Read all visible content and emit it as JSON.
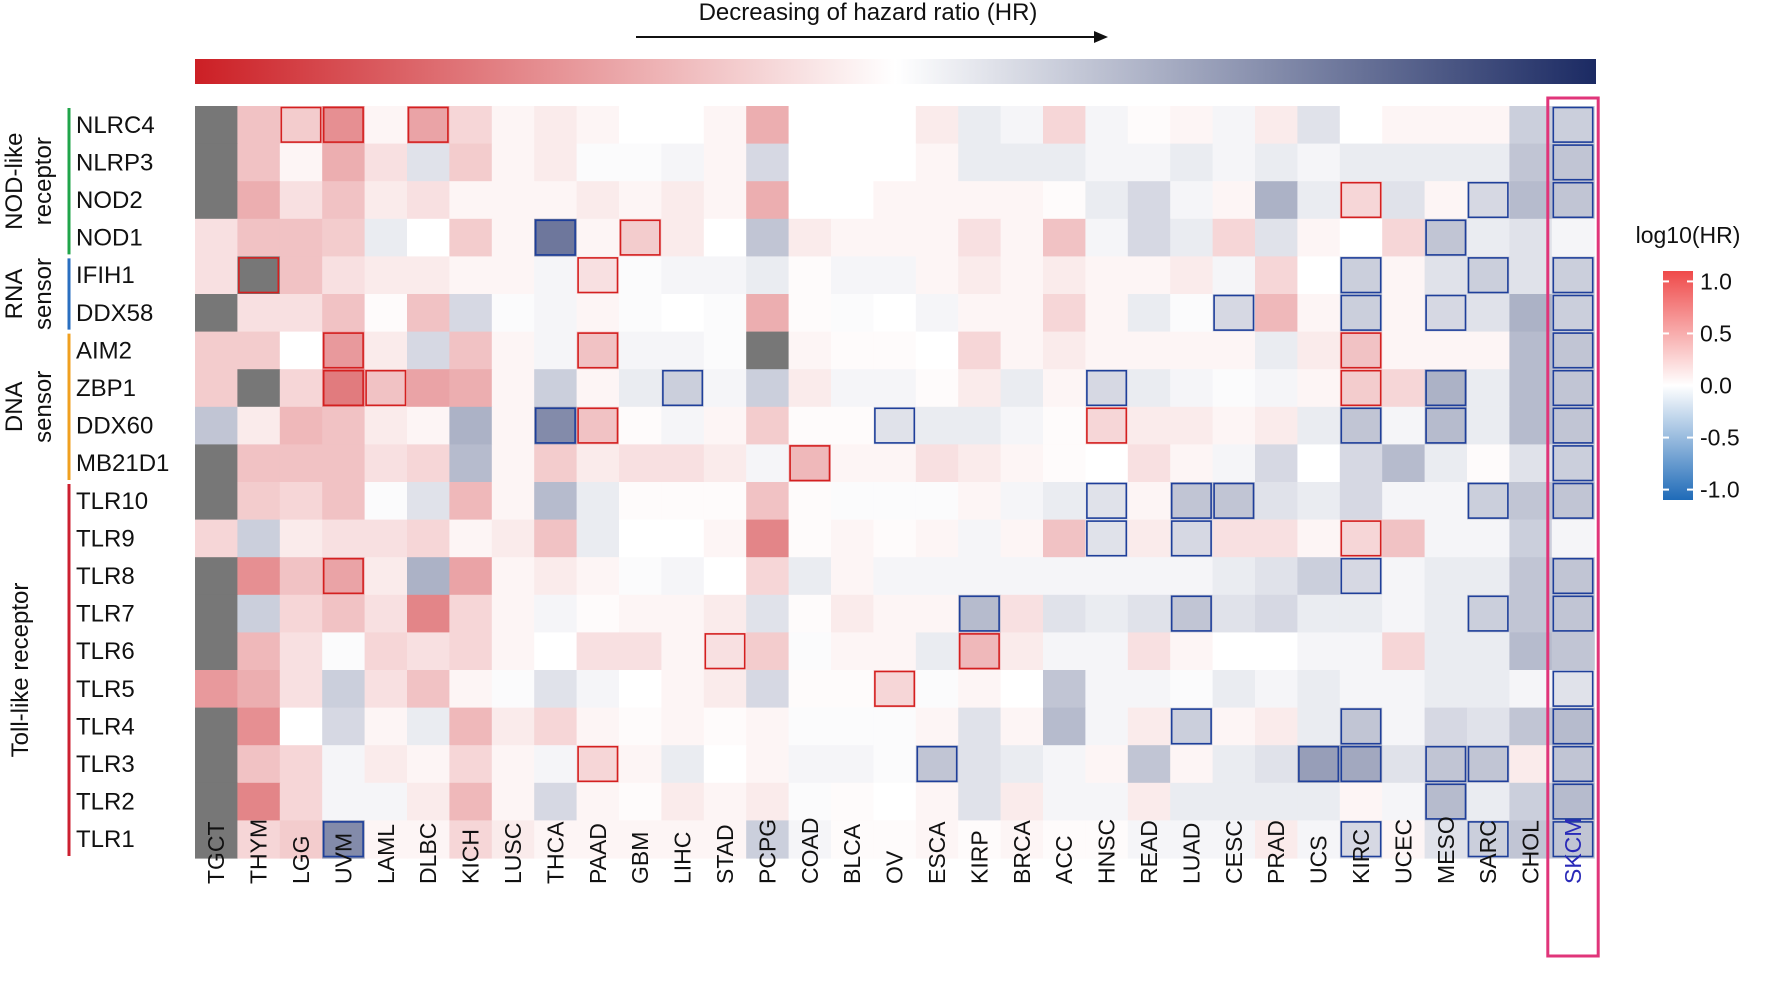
{
  "chart_data": {
    "type": "heatmap",
    "title": "Decreasing of hazard ratio (HR)",
    "legend_title": "log10(HR)",
    "legend_ticks": [
      "1.0",
      "0.5",
      "0.0",
      "-0.5",
      "-1.0"
    ],
    "legend_tick_values": [
      1.0,
      0.5,
      0.0,
      -0.5,
      -1.0
    ],
    "value_range": [
      -1.1,
      1.1
    ],
    "colors": {
      "high": "#cc1f25",
      "mid": "#ffffff",
      "low": "#1b2a63",
      "legend_high": "#ef4a4a",
      "legend_low": "#1f6bb8",
      "na": "#777777",
      "sig_pos": "#d42020",
      "sig_neg": "#1f3f9a",
      "highlight": "#e0357a",
      "highlight_text": "#2a2ab8",
      "group_nod": "#20a54a",
      "group_rna": "#2a6fc0",
      "group_dna": "#f0a020",
      "group_tlr": "#cc2030"
    },
    "columns": [
      "TGCT",
      "THYM",
      "LGG",
      "UVM",
      "LAML",
      "DLBC",
      "KICH",
      "LUSC",
      "THCA",
      "PAAD",
      "GBM",
      "LIHC",
      "STAD",
      "PCPG",
      "COAD",
      "BLCA",
      "OV",
      "ESCA",
      "KIRP",
      "BRCA",
      "ACC",
      "HNSC",
      "READ",
      "LUAD",
      "CESC",
      "PRAD",
      "UCS",
      "KIRC",
      "UCEC",
      "MESO",
      "SARC",
      "CHOL",
      "SKCM"
    ],
    "highlight_column": "SKCM",
    "rows": [
      "NLRC4",
      "NLRP3",
      "NOD2",
      "NOD1",
      "IFIH1",
      "DDX58",
      "AIM2",
      "ZBP1",
      "DDX60",
      "MB21D1",
      "TLR10",
      "TLR9",
      "TLR8",
      "TLR7",
      "TLR6",
      "TLR5",
      "TLR4",
      "TLR3",
      "TLR2",
      "TLR1"
    ],
    "groups": [
      {
        "name_lines": [
          "NOD-like",
          "receptor"
        ],
        "start": 0,
        "end": 3,
        "color_key": "group_nod"
      },
      {
        "name_lines": [
          "RNA",
          "sensor"
        ],
        "start": 4,
        "end": 5,
        "color_key": "group_rna"
      },
      {
        "name_lines": [
          "DNA",
          "sensor"
        ],
        "start": 6,
        "end": 9,
        "color_key": "group_dna"
      },
      {
        "name_lines": [
          "Toll-like receptor"
        ],
        "start": 10,
        "end": 19,
        "color_key": "group_tlr"
      }
    ],
    "values": [
      [
        null,
        0.3,
        0.25,
        0.55,
        0.05,
        0.45,
        0.2,
        0.05,
        0.1,
        0.05,
        0,
        0,
        0.05,
        0.4,
        0,
        0,
        0,
        0.1,
        -0.1,
        -0.05,
        0.2,
        -0.05,
        0.02,
        0.05,
        -0.05,
        0.1,
        -0.15,
        0,
        0.05,
        0.05,
        0.05,
        -0.25,
        -0.25
      ],
      [
        null,
        0.3,
        0.05,
        0.4,
        0.15,
        -0.15,
        0.25,
        0.05,
        0.1,
        -0.02,
        -0.02,
        -0.05,
        0.05,
        -0.2,
        0,
        0,
        0,
        0.05,
        -0.1,
        -0.1,
        -0.1,
        -0.05,
        -0.05,
        -0.1,
        -0.05,
        -0.1,
        -0.05,
        -0.1,
        -0.1,
        -0.1,
        -0.1,
        -0.3,
        -0.3
      ],
      [
        null,
        0.4,
        0.15,
        0.3,
        0.1,
        0.15,
        0.05,
        0.05,
        0.05,
        0.1,
        0.05,
        0.1,
        0.05,
        0.4,
        0,
        0,
        0.05,
        0.05,
        0.05,
        0.05,
        0.02,
        -0.1,
        -0.2,
        -0.05,
        0.05,
        -0.4,
        -0.1,
        0.2,
        -0.15,
        0.05,
        -0.2,
        -0.35,
        -0.3
      ],
      [
        0.15,
        0.3,
        0.3,
        0.25,
        -0.1,
        0,
        0.25,
        0.05,
        -0.7,
        0.05,
        0.25,
        0.1,
        0,
        -0.3,
        0.1,
        0.05,
        0.05,
        0.05,
        0.15,
        0.05,
        0.3,
        -0.05,
        -0.2,
        -0.1,
        0.2,
        -0.15,
        0.05,
        0,
        0.2,
        -0.3,
        -0.1,
        -0.15,
        -0.05
      ],
      [
        0.15,
        null,
        0.3,
        0.15,
        0.1,
        0.1,
        0.05,
        0.05,
        -0.05,
        0.15,
        -0.02,
        -0.05,
        -0.05,
        -0.1,
        0.02,
        -0.05,
        -0.05,
        0.05,
        0.1,
        0.05,
        0.1,
        0.05,
        0.05,
        0.1,
        -0.05,
        0.2,
        0,
        -0.25,
        0.05,
        -0.15,
        -0.25,
        -0.15,
        -0.25
      ],
      [
        null,
        0.15,
        0.15,
        0.3,
        0.02,
        0.3,
        -0.2,
        -0.02,
        -0.05,
        0.05,
        -0.02,
        0,
        -0.02,
        0.4,
        0.02,
        -0.02,
        0,
        -0.05,
        0.05,
        0.05,
        0.2,
        0.05,
        -0.1,
        -0.02,
        -0.2,
        0.35,
        0.05,
        -0.25,
        0.05,
        -0.2,
        -0.15,
        -0.4,
        -0.25
      ],
      [
        0.25,
        0.25,
        0,
        0.5,
        0.1,
        -0.2,
        0.3,
        0.05,
        -0.05,
        0.3,
        -0.05,
        -0.05,
        -0.02,
        null,
        0.05,
        0.02,
        0.02,
        0,
        0.2,
        0.05,
        0.1,
        0.05,
        0.05,
        0.05,
        0.05,
        -0.1,
        0.1,
        0.3,
        0.05,
        0.05,
        0.05,
        -0.35,
        -0.3
      ],
      [
        0.25,
        null,
        0.2,
        0.65,
        0.3,
        0.45,
        0.4,
        0.05,
        -0.25,
        0.05,
        -0.1,
        -0.25,
        -0.05,
        -0.25,
        0.1,
        -0.05,
        -0.05,
        0.02,
        0.1,
        -0.1,
        0.05,
        -0.2,
        -0.1,
        -0.05,
        -0.02,
        -0.05,
        0.05,
        0.25,
        0.2,
        -0.4,
        -0.1,
        -0.35,
        -0.3
      ],
      [
        -0.3,
        0.1,
        0.35,
        0.3,
        0.1,
        0.05,
        -0.4,
        0.05,
        -0.6,
        0.3,
        0.02,
        -0.05,
        0.05,
        0.25,
        0.02,
        0.02,
        -0.15,
        -0.1,
        -0.1,
        -0.05,
        0.02,
        0.2,
        0.1,
        0.1,
        0.05,
        0.1,
        -0.1,
        -0.3,
        -0.05,
        -0.35,
        -0.1,
        -0.35,
        -0.3
      ],
      [
        null,
        0.3,
        0.3,
        0.3,
        0.15,
        0.2,
        -0.35,
        0.05,
        0.25,
        0.1,
        0.15,
        0.15,
        0.1,
        -0.05,
        0.35,
        0.05,
        0.05,
        0.15,
        0.1,
        0.05,
        0.02,
        0,
        0.15,
        0.05,
        -0.05,
        -0.2,
        0,
        -0.2,
        -0.35,
        -0.1,
        0.02,
        -0.15,
        -0.25
      ],
      [
        null,
        0.25,
        0.2,
        0.3,
        -0.02,
        -0.15,
        0.35,
        0.05,
        -0.35,
        -0.1,
        0.02,
        0.02,
        0.02,
        0.3,
        0.02,
        -0.02,
        -0.02,
        -0.02,
        0.05,
        -0.05,
        -0.1,
        -0.15,
        0.05,
        -0.3,
        -0.3,
        -0.15,
        -0.1,
        -0.2,
        -0.05,
        -0.05,
        -0.25,
        -0.3,
        -0.3
      ],
      [
        0.2,
        -0.25,
        0.1,
        0.15,
        0.15,
        0.2,
        0.05,
        0.1,
        0.3,
        -0.1,
        0,
        0,
        0.05,
        0.6,
        0.02,
        0.05,
        0.02,
        0.05,
        -0.05,
        0.05,
        0.3,
        -0.15,
        0.1,
        -0.2,
        0.15,
        0.15,
        0.05,
        0.2,
        0.3,
        -0.05,
        -0.05,
        -0.25,
        -0.05
      ],
      [
        null,
        0.55,
        0.3,
        0.45,
        0.1,
        -0.4,
        0.45,
        0.05,
        0.1,
        0.05,
        -0.02,
        -0.05,
        0,
        0.2,
        -0.1,
        0.05,
        -0.05,
        -0.05,
        -0.05,
        -0.05,
        -0.05,
        -0.05,
        -0.05,
        -0.05,
        -0.1,
        -0.15,
        -0.25,
        -0.2,
        -0.05,
        -0.1,
        -0.1,
        -0.3,
        -0.3
      ],
      [
        null,
        -0.25,
        0.2,
        0.3,
        0.15,
        0.6,
        0.2,
        0.05,
        -0.05,
        0.02,
        0.05,
        0.05,
        0.1,
        -0.15,
        0.02,
        0.1,
        0.05,
        0.05,
        -0.35,
        0.15,
        -0.15,
        -0.1,
        -0.15,
        -0.3,
        -0.15,
        -0.2,
        -0.1,
        -0.1,
        -0.05,
        -0.1,
        -0.25,
        -0.3,
        -0.3
      ],
      [
        null,
        0.35,
        0.15,
        -0.02,
        0.2,
        0.15,
        0.2,
        0.05,
        0,
        0.15,
        0.15,
        0.05,
        0.15,
        0.25,
        -0.02,
        0.05,
        0.05,
        -0.1,
        0.35,
        0.1,
        -0.05,
        -0.05,
        0.15,
        0.05,
        0,
        0,
        -0.05,
        -0.05,
        0.2,
        -0.1,
        -0.1,
        -0.35,
        -0.3
      ],
      [
        0.5,
        0.4,
        0.15,
        -0.25,
        0.15,
        0.3,
        0.05,
        -0.02,
        -0.15,
        -0.05,
        0,
        0.05,
        0.1,
        -0.2,
        0.02,
        0.02,
        0.2,
        -0.02,
        0.05,
        0,
        -0.3,
        -0.05,
        -0.05,
        -0.02,
        -0.1,
        -0.05,
        -0.1,
        -0.05,
        -0.05,
        -0.1,
        -0.1,
        -0.05,
        -0.15
      ],
      [
        null,
        0.55,
        0,
        -0.2,
        0.05,
        -0.1,
        0.35,
        0.1,
        0.2,
        0.05,
        0.02,
        0.05,
        0.02,
        0.05,
        -0.02,
        -0.02,
        -0.02,
        0.05,
        -0.15,
        0.05,
        -0.35,
        -0.05,
        0.1,
        -0.25,
        0.05,
        0.1,
        -0.1,
        -0.3,
        -0.05,
        -0.2,
        -0.15,
        -0.3,
        -0.35
      ],
      [
        null,
        0.3,
        0.2,
        -0.05,
        0.1,
        0.05,
        0.2,
        0.05,
        -0.05,
        0.2,
        0.05,
        -0.1,
        0,
        0.05,
        -0.05,
        -0.05,
        -0.02,
        -0.3,
        -0.15,
        -0.1,
        -0.05,
        0.05,
        -0.3,
        0.05,
        -0.1,
        -0.15,
        -0.5,
        -0.45,
        -0.15,
        -0.3,
        -0.3,
        0.1,
        -0.3
      ],
      [
        null,
        0.6,
        0.2,
        -0.05,
        -0.05,
        0.1,
        0.35,
        0.05,
        -0.2,
        0.05,
        0.02,
        0.1,
        0.05,
        0.1,
        -0.02,
        0.02,
        0,
        0.05,
        -0.15,
        0.1,
        -0.05,
        -0.05,
        0.1,
        -0.1,
        -0.1,
        -0.1,
        -0.1,
        0.05,
        -0.05,
        -0.35,
        -0.1,
        -0.25,
        -0.35
      ],
      [
        null,
        0.2,
        0.25,
        -0.6,
        0.05,
        0.05,
        0.2,
        0.1,
        0.05,
        0.05,
        0.05,
        0.05,
        0.05,
        -0.25,
        -0.05,
        0.02,
        0.02,
        0.05,
        0.02,
        0.05,
        0.02,
        0.02,
        -0.05,
        -0.05,
        -0.05,
        0.1,
        -0.05,
        -0.2,
        0.05,
        -0.15,
        -0.25,
        -0.3,
        -0.3
      ]
    ],
    "significant": [
      [
        0,
        2,
        "pos"
      ],
      [
        0,
        3,
        "pos"
      ],
      [
        0,
        5,
        "pos"
      ],
      [
        2,
        27,
        "pos"
      ],
      [
        2,
        30,
        "neg"
      ],
      [
        3,
        8,
        "neg"
      ],
      [
        3,
        10,
        "pos"
      ],
      [
        3,
        29,
        "neg"
      ],
      [
        4,
        1,
        "pos"
      ],
      [
        4,
        9,
        "pos"
      ],
      [
        4,
        27,
        "neg"
      ],
      [
        4,
        30,
        "neg"
      ],
      [
        5,
        24,
        "neg"
      ],
      [
        5,
        27,
        "neg"
      ],
      [
        5,
        29,
        "neg"
      ],
      [
        6,
        3,
        "pos"
      ],
      [
        6,
        9,
        "pos"
      ],
      [
        6,
        27,
        "pos"
      ],
      [
        7,
        3,
        "pos"
      ],
      [
        7,
        4,
        "pos"
      ],
      [
        7,
        11,
        "neg"
      ],
      [
        7,
        21,
        "neg"
      ],
      [
        7,
        27,
        "pos"
      ],
      [
        7,
        29,
        "neg"
      ],
      [
        8,
        8,
        "neg"
      ],
      [
        8,
        9,
        "pos"
      ],
      [
        8,
        16,
        "neg"
      ],
      [
        8,
        21,
        "pos"
      ],
      [
        8,
        27,
        "neg"
      ],
      [
        8,
        29,
        "neg"
      ],
      [
        9,
        14,
        "pos"
      ],
      [
        10,
        21,
        "neg"
      ],
      [
        10,
        23,
        "neg"
      ],
      [
        10,
        24,
        "neg"
      ],
      [
        10,
        30,
        "neg"
      ],
      [
        11,
        21,
        "neg"
      ],
      [
        11,
        23,
        "neg"
      ],
      [
        11,
        27,
        "pos"
      ],
      [
        12,
        3,
        "pos"
      ],
      [
        12,
        27,
        "neg"
      ],
      [
        13,
        18,
        "neg"
      ],
      [
        13,
        23,
        "neg"
      ],
      [
        13,
        30,
        "neg"
      ],
      [
        14,
        12,
        "pos"
      ],
      [
        14,
        18,
        "pos"
      ],
      [
        15,
        16,
        "pos"
      ],
      [
        16,
        23,
        "neg"
      ],
      [
        16,
        27,
        "neg"
      ],
      [
        17,
        9,
        "pos"
      ],
      [
        17,
        17,
        "neg"
      ],
      [
        17,
        26,
        "neg"
      ],
      [
        17,
        27,
        "neg"
      ],
      [
        17,
        29,
        "neg"
      ],
      [
        17,
        30,
        "neg"
      ],
      [
        18,
        29,
        "neg"
      ],
      [
        19,
        3,
        "neg"
      ],
      [
        19,
        27,
        "neg"
      ],
      [
        19,
        30,
        "neg"
      ]
    ],
    "significant_box_columns": [
      2,
      32
    ],
    "significant_box_sign": "neg"
  }
}
